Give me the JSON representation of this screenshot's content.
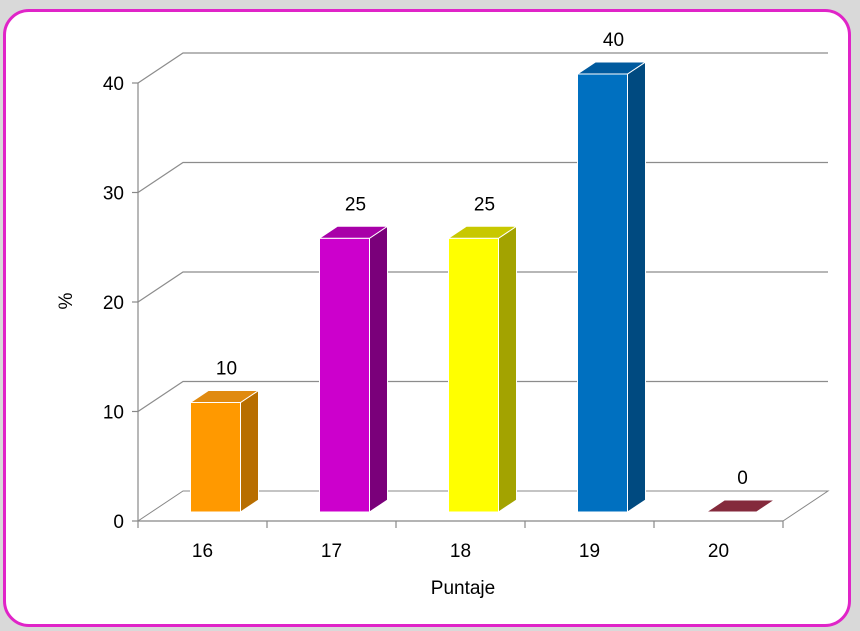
{
  "chart_data": {
    "type": "bar",
    "categories": [
      "16",
      "17",
      "18",
      "19",
      "20"
    ],
    "values": [
      10,
      25,
      25,
      40,
      0
    ],
    "data_labels": [
      "10",
      "25",
      "25",
      "40",
      "0"
    ],
    "xlabel": "Puntaje",
    "ylabel": "%",
    "ylim": [
      0,
      40
    ],
    "yticks": [
      "0",
      "10",
      "20",
      "30",
      "40"
    ],
    "grid": true,
    "three_d": true,
    "colors": {
      "front": [
        "#ff9900",
        "#cc00cc",
        "#ffff00",
        "#0070c0",
        "#a0304a"
      ],
      "side": [
        "#b86e00",
        "#7a007a",
        "#a3a300",
        "#004a80",
        "#6a1e30"
      ],
      "top": [
        "#e08a10",
        "#a800a8",
        "#c8c800",
        "#005a9e",
        "#842a3c"
      ],
      "border": "#e024c8"
    }
  }
}
